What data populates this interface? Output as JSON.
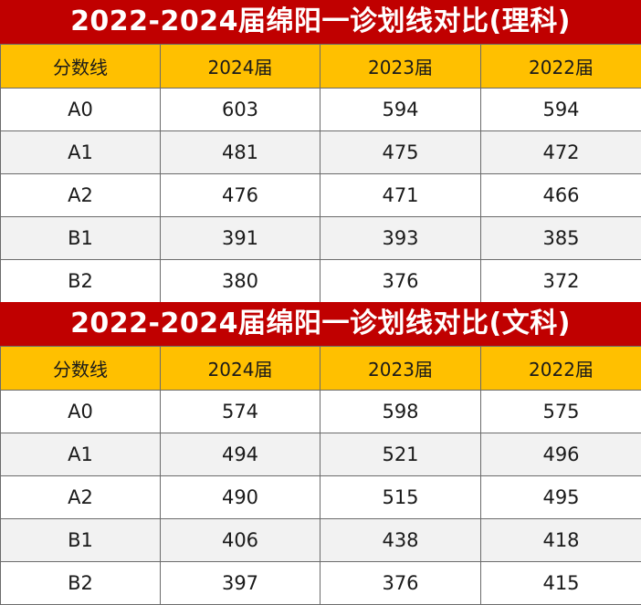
{
  "tables": [
    {
      "title": "2022-2024届绵阳一诊划线对比(理科)",
      "headers": [
        "分数线",
        "2024届",
        "2023届",
        "2022届"
      ],
      "rows": [
        [
          "A0",
          "603",
          "594",
          "594"
        ],
        [
          "A1",
          "481",
          "475",
          "472"
        ],
        [
          "A2",
          "476",
          "471",
          "466"
        ],
        [
          "B1",
          "391",
          "393",
          "385"
        ],
        [
          "B2",
          "380",
          "376",
          "372"
        ]
      ]
    },
    {
      "title": "2022-2024届绵阳一诊划线对比(文科)",
      "headers": [
        "分数线",
        "2024届",
        "2023届",
        "2022届"
      ],
      "rows": [
        [
          "A0",
          "574",
          "598",
          "575"
        ],
        [
          "A1",
          "494",
          "521",
          "496"
        ],
        [
          "A2",
          "490",
          "515",
          "495"
        ],
        [
          "B1",
          "406",
          "438",
          "418"
        ],
        [
          "B2",
          "397",
          "376",
          "415"
        ]
      ]
    }
  ],
  "colors": {
    "title_bg": "#c00000",
    "title_text": "#ffffff",
    "header_bg": "#ffc000",
    "row_alt_bg": "#f2f2f2",
    "border": "#6b6b6b"
  }
}
